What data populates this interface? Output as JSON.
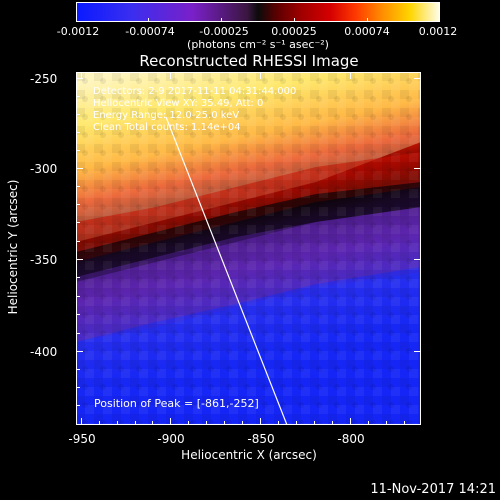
{
  "colorbar": {
    "ticks": [
      "-0.0012",
      "-0.00074",
      "-0.00025",
      "0.00025",
      "0.00074",
      "0.0012"
    ],
    "units": "(photons cm⁻² s⁻¹ asec⁻²)"
  },
  "title": "Reconstructed RHESSI Image",
  "info": {
    "line1": "Detectors: 2-9  2017-11-11 04:31:44.000",
    "line2": "Heliocentric View  XY: 35.49, Att: 0",
    "line3": "Energy Range: 12.0-25.0 keV",
    "line4": "Clean   Total counts: 1.14e+04"
  },
  "peak_label": "Position of Peak = [-861,-252]",
  "x_axis": {
    "label": "Heliocentric X (arcsec)",
    "ticks": [
      "-950",
      "-900",
      "-850",
      "-800"
    ]
  },
  "y_axis": {
    "label": "Heliocentric Y (arcsec)",
    "ticks": [
      "-250",
      "-300",
      "-350",
      "-400"
    ]
  },
  "timestamp": "11-Nov-2017 14:21",
  "colors": {
    "background": "#000000",
    "foreground": "#ffffff"
  }
}
